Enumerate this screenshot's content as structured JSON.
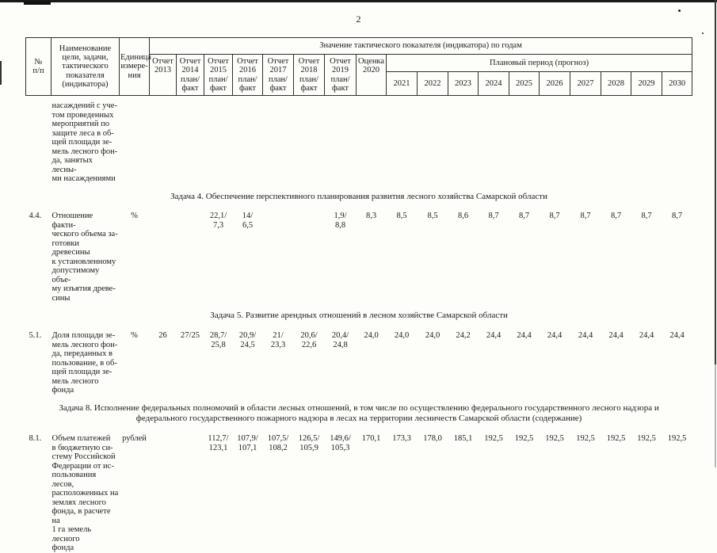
{
  "page": {
    "number": "2"
  },
  "table": {
    "header": {
      "num": "№\nп/п",
      "name": "Наименование\nцели, задачи,\nтактического\nпоказателя\n(индикатора)",
      "unit": "Единица\nизмере-\nния",
      "value_title": "Значение тактического показателя (индикатора) по годам",
      "report_cols": [
        "Отчет\n2013",
        "Отчет\n2014\nплан/\nфакт",
        "Отчет\n2015\nплан/\nфакт",
        "Отчет\n2016\nплан/\nфакт",
        "Отчет\n2017\nплан/\nфакт",
        "Отчет\n2018\nплан/\nфакт",
        "Отчет\n2019\nплан/\nфакт"
      ],
      "otsenka": "Оценка\n2020",
      "plan_title": "Плановый период (прогноз)",
      "plan_years": [
        "2021",
        "2022",
        "2023",
        "2024",
        "2025",
        "2026",
        "2027",
        "2028",
        "2029",
        "2030"
      ]
    },
    "rows": [
      {
        "type": "continuation",
        "num": "",
        "name": "насаждений с уче-\nтом проведенных\nмероприятий по\nзащите леса в об-\nщей площади зе-\nмель лесного фон-\nда, занятых лесны-\nми насаждениями",
        "unit": "",
        "values": [
          "",
          "",
          "",
          "",
          "",
          "",
          "",
          "",
          "",
          "",
          "",
          "",
          "",
          "",
          "",
          "",
          "",
          ""
        ]
      },
      {
        "type": "section",
        "text": "Задача 4. Обеспечение перспективного планирования развития лесного хозяйства Самарской области"
      },
      {
        "type": "row",
        "num": "4.4.",
        "name": "Отношение факти-\nческого объема за-\nготовки древесины\nк установленному\nдопустимому объе-\nму изъятия древе-\nсины",
        "unit": "%",
        "values": [
          "",
          "",
          "22,1/\n7,3",
          "14/\n6,5",
          "",
          "",
          "1,9/\n8,8",
          "8,3",
          "8,5",
          "8,5",
          "8,6",
          "8,7",
          "8,7",
          "8,7",
          "8,7",
          "8,7",
          "8,7",
          "8,7"
        ]
      },
      {
        "type": "section",
        "text": "Задача 5. Развитие арендных отношений в лесном хозяйстве Самарской области"
      },
      {
        "type": "row",
        "num": "5.1.",
        "name": "Доля площади зе-\nмель лесного фон-\nда, переданных в\nпользование, в об-\nщей площади зе-\nмель лесного фонда",
        "unit": "%",
        "values": [
          "26",
          "27/25",
          "28,7/\n25,8",
          "20,9/\n24,5",
          "21/\n23,3",
          "20,6/\n22,6",
          "20,4/\n24,8",
          "24,0",
          "24,0",
          "24,0",
          "24,2",
          "24,4",
          "24,4",
          "24,4",
          "24,4",
          "24,4",
          "24,4",
          "24,4"
        ]
      },
      {
        "type": "section",
        "text": "Задача 8. Исполнение федеральных полномочий в области лесных отношений, в том числе по осуществлению федерального государственного лесного надзора и\nфедерального государственного пожарного надзора в лесах на территории лесничеств Самарской области (содержание)"
      },
      {
        "type": "row",
        "num": "8.1.",
        "name": "Объем платежей\nв бюджетную си-\nстему Российской\nФедерации от ис-\nпользования лесов,\nрасположенных на\nземлях лесного\nфонда, в расчете на\n1 га земель лесного\nфонда",
        "unit": "рублей",
        "values": [
          "",
          "",
          "112,7/\n123,1",
          "107,9/\n107,1",
          "107,5/\n108,2",
          "126,5/\n105,9",
          "149,6/\n105,3",
          "170,1",
          "173,3",
          "178,0",
          "185,1",
          "192,5",
          "192,5",
          "192,5",
          "192,5",
          "192,5",
          "192,5",
          "192,5"
        ]
      }
    ]
  }
}
